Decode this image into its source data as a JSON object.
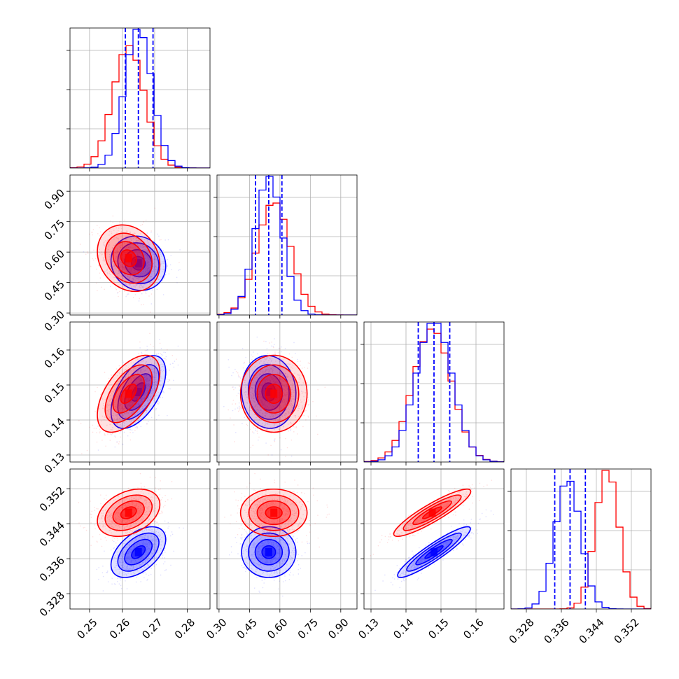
{
  "chart_data": {
    "type": "corner",
    "title": "",
    "grid": true,
    "parameters": [
      {
        "name": "",
        "ticks": [
          0.25,
          0.26,
          0.27,
          0.28
        ],
        "tick_labels": [
          "0.25",
          "0.26",
          "0.27",
          "0.28"
        ],
        "range": [
          0.244,
          0.287
        ]
      },
      {
        "name": "",
        "ticks": [
          0.3,
          0.45,
          0.6,
          0.75,
          0.9
        ],
        "tick_labels": [
          "0.30",
          "0.45",
          "0.60",
          "0.75",
          "0.90"
        ],
        "range": [
          0.29,
          0.98
        ]
      },
      {
        "name": "",
        "ticks": [
          0.13,
          0.14,
          0.15,
          0.16
        ],
        "tick_labels": [
          "0.13",
          "0.14",
          "0.15",
          "0.16"
        ],
        "range": [
          0.128,
          0.168
        ]
      },
      {
        "name": "",
        "ticks": [
          0.328,
          0.336,
          0.344,
          0.352
        ],
        "tick_labels": [
          "0.328",
          "0.336",
          "0.344",
          "0.352"
        ],
        "range": [
          0.3245,
          0.3565
        ]
      }
    ],
    "series": [
      {
        "name": "",
        "color": "#0000ff",
        "means": [
          0.265,
          0.545,
          0.148,
          0.3375
        ],
        "sigmas": [
          0.0042,
          0.067,
          0.0052,
          0.0029
        ],
        "correlations": {
          "0-1": -0.1,
          "0-2": 0.55,
          "0-3": 0.5,
          "1-2": -0.05,
          "1-3": 0.0,
          "2-3": 0.92
        }
      },
      {
        "name": "",
        "color": "#ff0000",
        "means": [
          0.262,
          0.57,
          0.1475,
          0.3465
        ],
        "sigmas": [
          0.0048,
          0.082,
          0.0055,
          0.0027
        ],
        "correlations": {
          "0-1": -0.2,
          "0-2": 0.55,
          "0-3": 0.35,
          "1-2": 0.0,
          "1-3": 0.0,
          "2-3": 0.9
        }
      }
    ],
    "quantile_lines": {
      "color": "#0000ff",
      "style": "dashed",
      "values": [
        [
          0.261,
          0.265,
          0.2695
        ],
        [
          0.48,
          0.545,
          0.61
        ],
        [
          0.1435,
          0.148,
          0.1525
        ],
        [
          0.3345,
          0.338,
          0.3415
        ]
      ]
    }
  }
}
